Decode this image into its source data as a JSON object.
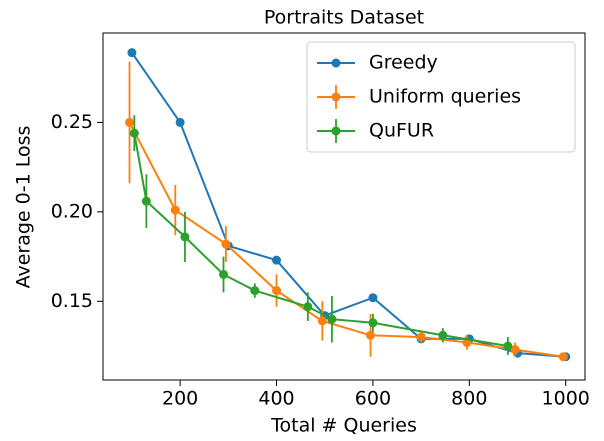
{
  "chart_data": {
    "type": "line",
    "title": "Portraits Dataset",
    "x_label": "Total # Queries",
    "y_label": "Average 0-1 Loss",
    "xlim": [
      40,
      1040
    ],
    "xticks": [
      200,
      400,
      600,
      800,
      1000
    ],
    "ylim": [
      0.106,
      0.3
    ],
    "yticks": [
      0.15,
      {
        "value": 0.2,
        "label": "0.20"
      },
      0.25
    ],
    "legend": "upper right",
    "series": [
      {
        "name": "Greedy",
        "color": "#1f77b4",
        "x": [
          100,
          200,
          300,
          400,
          500,
          600,
          700,
          800,
          900,
          1000
        ],
        "values": [
          0.289,
          0.25,
          0.181,
          0.173,
          0.142,
          0.152,
          0.129,
          0.129,
          0.121,
          0.119
        ]
      },
      {
        "name": "Uniform queries",
        "color": "#ff7f0e",
        "x": [
          95,
          190,
          295,
          400,
          495,
          595,
          700,
          795,
          895,
          995
        ],
        "values": [
          0.25,
          0.201,
          0.182,
          0.156,
          0.139,
          0.131,
          0.13,
          0.127,
          0.123,
          0.119
        ],
        "errors": [
          0.034,
          0.014,
          0.01,
          0.009,
          0.011,
          0.012,
          0.003,
          0.004,
          0.004,
          0.002
        ]
      },
      {
        "name": "QuFUR",
        "color": "#2ca02c",
        "x": [
          105,
          130,
          210,
          290,
          355,
          465,
          515,
          600,
          745,
          880
        ],
        "values": [
          0.244,
          0.206,
          0.186,
          0.165,
          0.156,
          0.147,
          0.14,
          0.138,
          0.131,
          0.125
        ],
        "errors": [
          0.01,
          0.015,
          0.014,
          0.01,
          0.004,
          0.008,
          0.013,
          0.005,
          0.004,
          0.005
        ]
      }
    ]
  }
}
